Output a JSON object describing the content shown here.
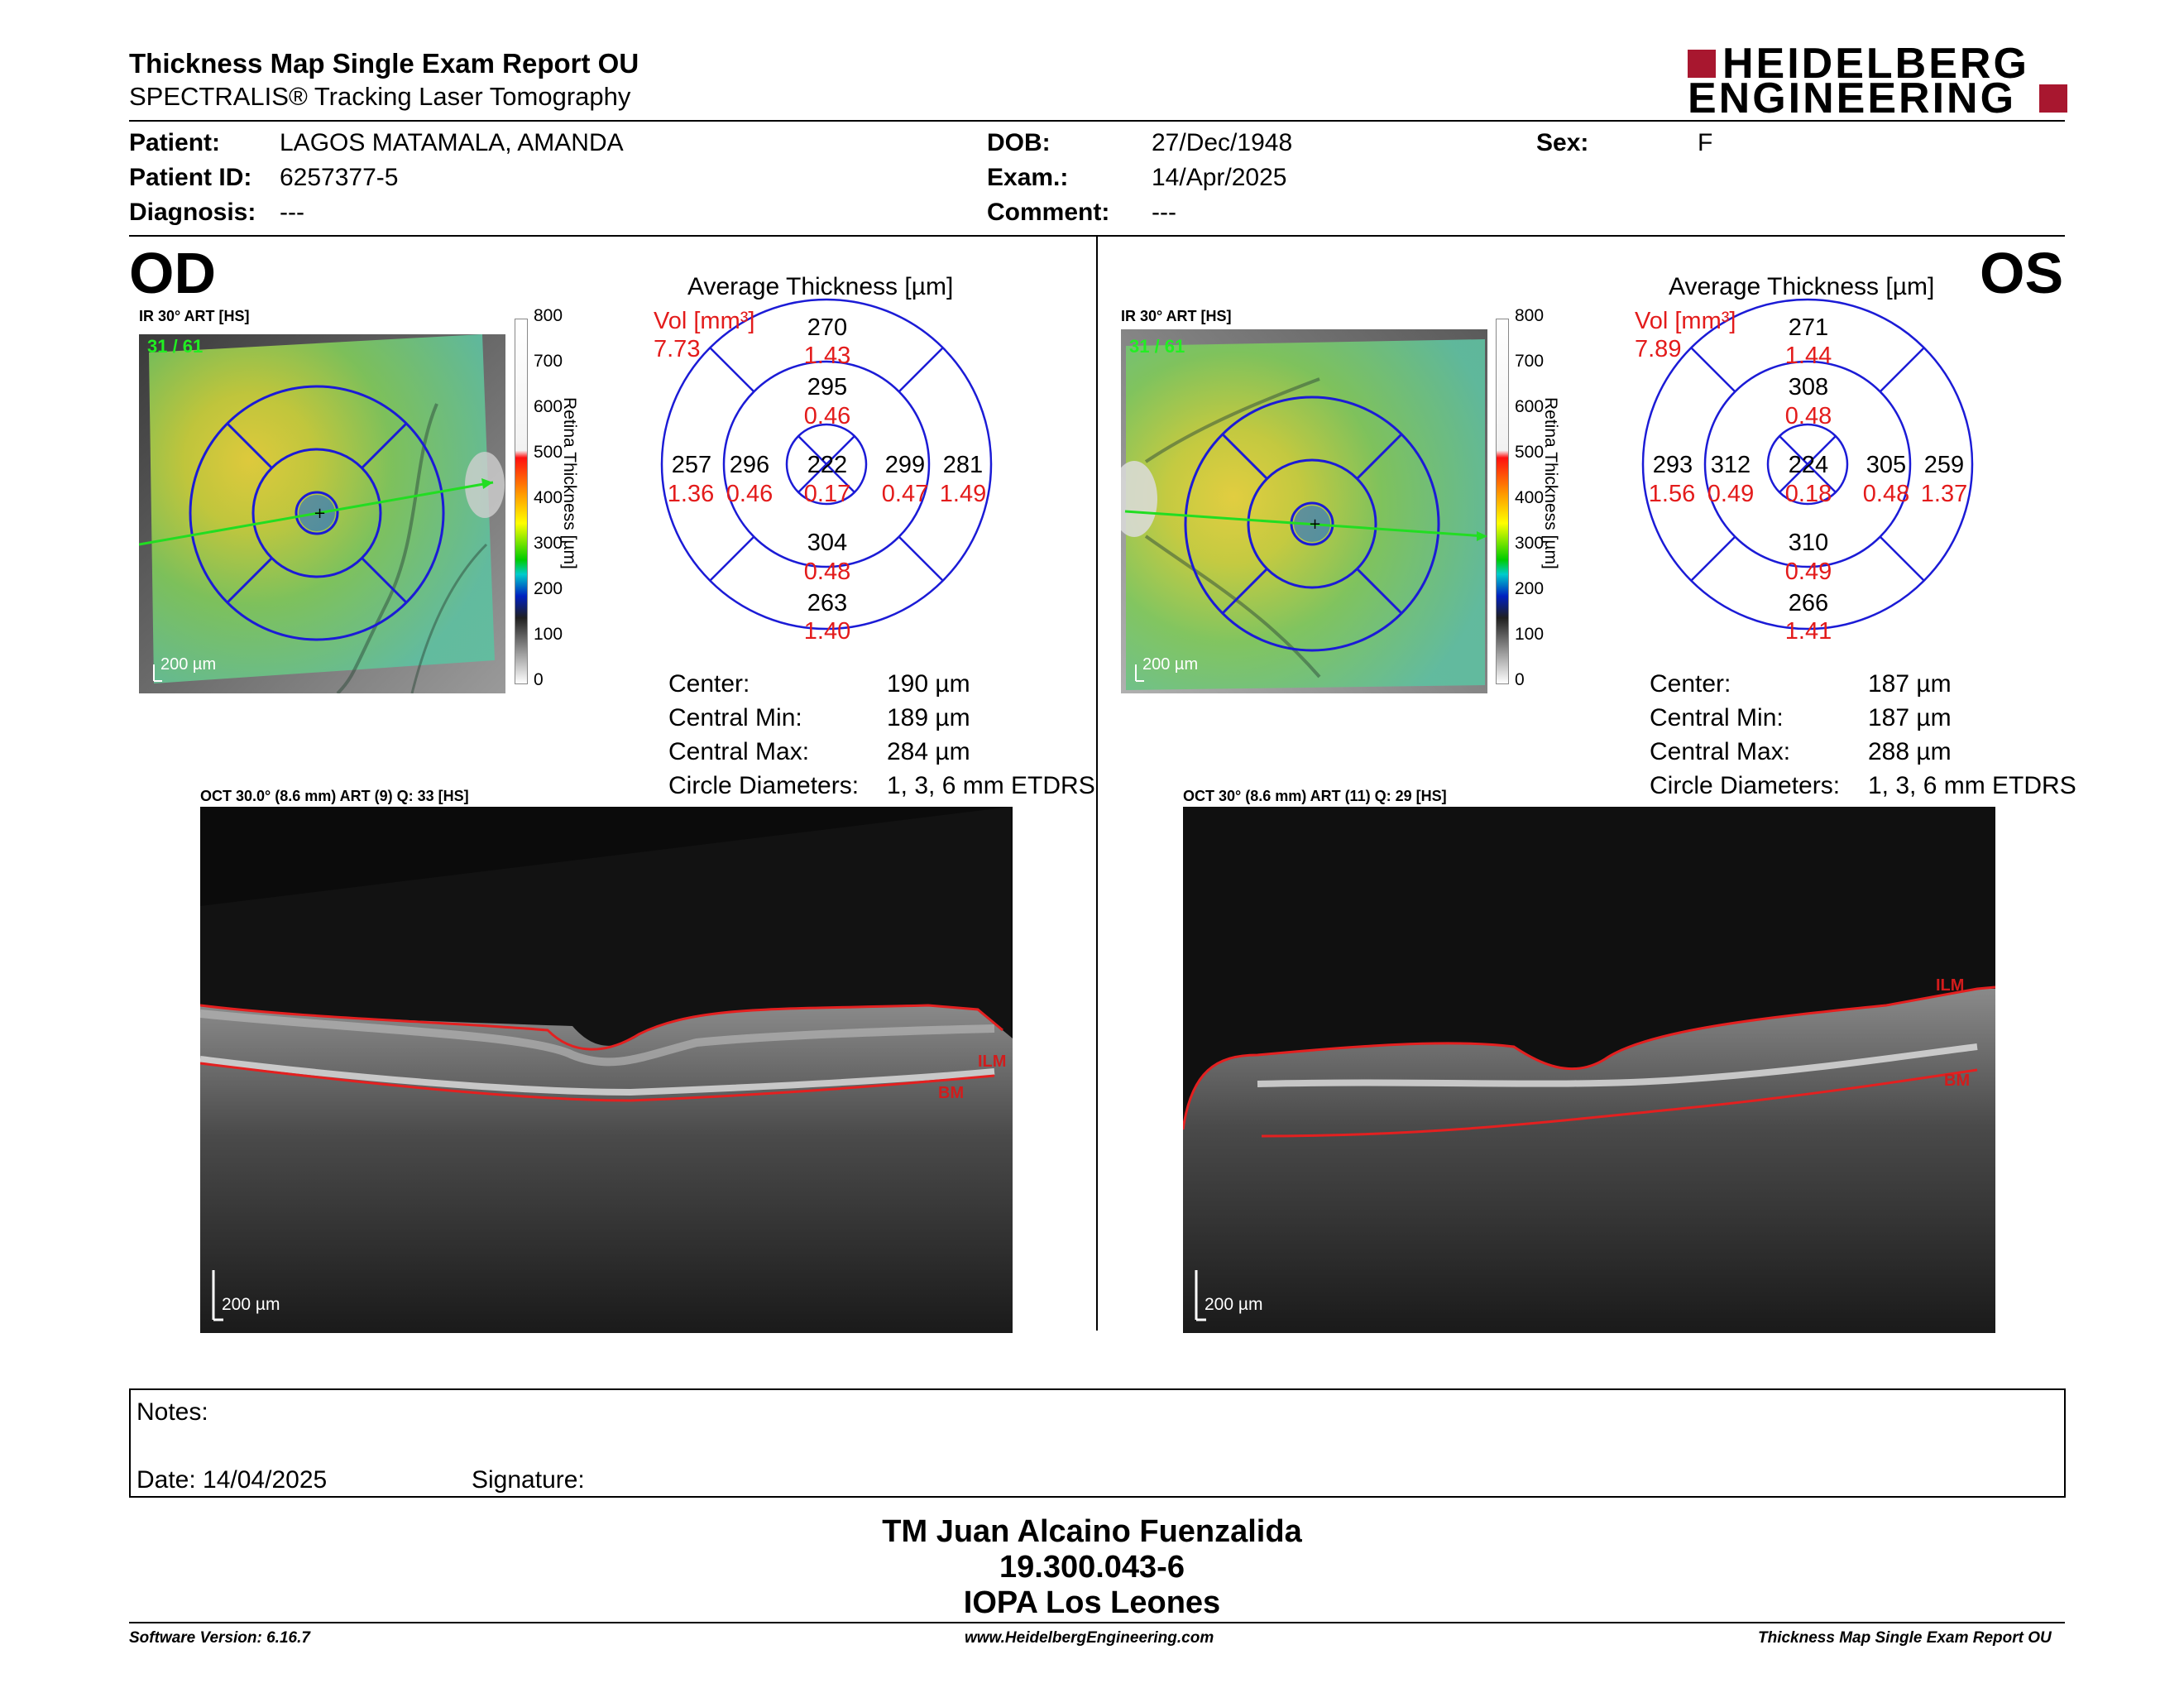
{
  "header": {
    "title": "Thickness Map Single Exam Report OU",
    "subtitle": "SPECTRALIS® Tracking Laser Tomography",
    "logo_top": "HEIDELBERG",
    "logo_bottom": "ENGINEERING",
    "brand_color": "#a8172f"
  },
  "patient": {
    "patient_label": "Patient:",
    "patient_value": "LAGOS MATAMALA, AMANDA",
    "id_label": "Patient ID:",
    "id_value": "6257377-5",
    "diagnosis_label": "Diagnosis:",
    "diagnosis_value": "---",
    "dob_label": "DOB:",
    "dob_value": "27/Dec/1948",
    "exam_label": "Exam.:",
    "exam_value": "14/Apr/2025",
    "comment_label": "Comment:",
    "comment_value": "---",
    "sex_label": "Sex:",
    "sex_value": "F"
  },
  "od": {
    "eye_label": "OD",
    "ir_label": "IR 30° ART [HS]",
    "frame_counter": "31 / 61",
    "scale_label": "200 µm",
    "colorbar_ticks": [
      "800",
      "700",
      "600",
      "500",
      "400",
      "300",
      "200",
      "100",
      "0"
    ],
    "colorbar_title": "Retina Thickness [µm]",
    "avg_title": "Average Thickness [µm]",
    "vol_label": "Vol [mm³]",
    "vol_total": "7.73",
    "sectors": {
      "outer_sup": [
        "270",
        "1.43"
      ],
      "inner_sup": [
        "295",
        "0.46"
      ],
      "outer_nasal_left": [
        "257",
        "1.36"
      ],
      "inner_left": [
        "296",
        "0.46"
      ],
      "center": [
        "222",
        "0.17"
      ],
      "inner_right": [
        "299",
        "0.47"
      ],
      "outer_right": [
        "281",
        "1.49"
      ],
      "inner_inf": [
        "304",
        "0.48"
      ],
      "outer_inf": [
        "263",
        "1.40"
      ]
    },
    "stats": {
      "center_label": "Center:",
      "center_value": "190 µm",
      "min_label": "Central Min:",
      "min_value": "189 µm",
      "max_label": "Central Max:",
      "max_value": "284 µm",
      "diam_label": "Circle Diameters:",
      "diam_value": "1, 3, 6 mm ETDRS"
    },
    "oct_label": "OCT 30.0° (8.6 mm) ART (9) Q: 33 [HS]",
    "oct_scale": "200 µm",
    "ilm": "ILM",
    "bm": "BM"
  },
  "os": {
    "eye_label": "OS",
    "ir_label": "IR 30° ART [HS]",
    "frame_counter": "31 / 61",
    "scale_label": "200 µm",
    "colorbar_ticks": [
      "800",
      "700",
      "600",
      "500",
      "400",
      "300",
      "200",
      "100",
      "0"
    ],
    "colorbar_title": "Retina Thickness [µm]",
    "avg_title": "Average Thickness [µm]",
    "vol_label": "Vol [mm³]",
    "vol_total": "7.89",
    "sectors": {
      "outer_sup": [
        "271",
        "1.44"
      ],
      "inner_sup": [
        "308",
        "0.48"
      ],
      "outer_nasal_left": [
        "293",
        "1.56"
      ],
      "inner_left": [
        "312",
        "0.49"
      ],
      "center": [
        "224",
        "0.18"
      ],
      "inner_right": [
        "305",
        "0.48"
      ],
      "outer_right": [
        "259",
        "1.37"
      ],
      "inner_inf": [
        "310",
        "0.49"
      ],
      "outer_inf": [
        "266",
        "1.41"
      ]
    },
    "stats": {
      "center_label": "Center:",
      "center_value": "187 µm",
      "min_label": "Central Min:",
      "min_value": "187 µm",
      "max_label": "Central Max:",
      "max_value": "288 µm",
      "diam_label": "Circle Diameters:",
      "diam_value": "1, 3, 6 mm ETDRS"
    },
    "oct_label": "OCT 30° (8.6 mm) ART (11) Q: 29 [HS]",
    "oct_scale": "200 µm",
    "ilm": "ILM",
    "bm": "BM"
  },
  "notes": {
    "notes_label": "Notes:",
    "date_label": "Date: 14/04/2025",
    "signature_label": "Signature:"
  },
  "signature_block": {
    "name": "TM Juan Alcaino Fuenzalida",
    "rut": "19.300.043-6",
    "org": "IOPA Los Leones"
  },
  "footer": {
    "software": "Software Version: 6.16.7",
    "website": "www.HeidelbergEngineering.com",
    "report": "Thickness Map Single Exam Report OU"
  }
}
